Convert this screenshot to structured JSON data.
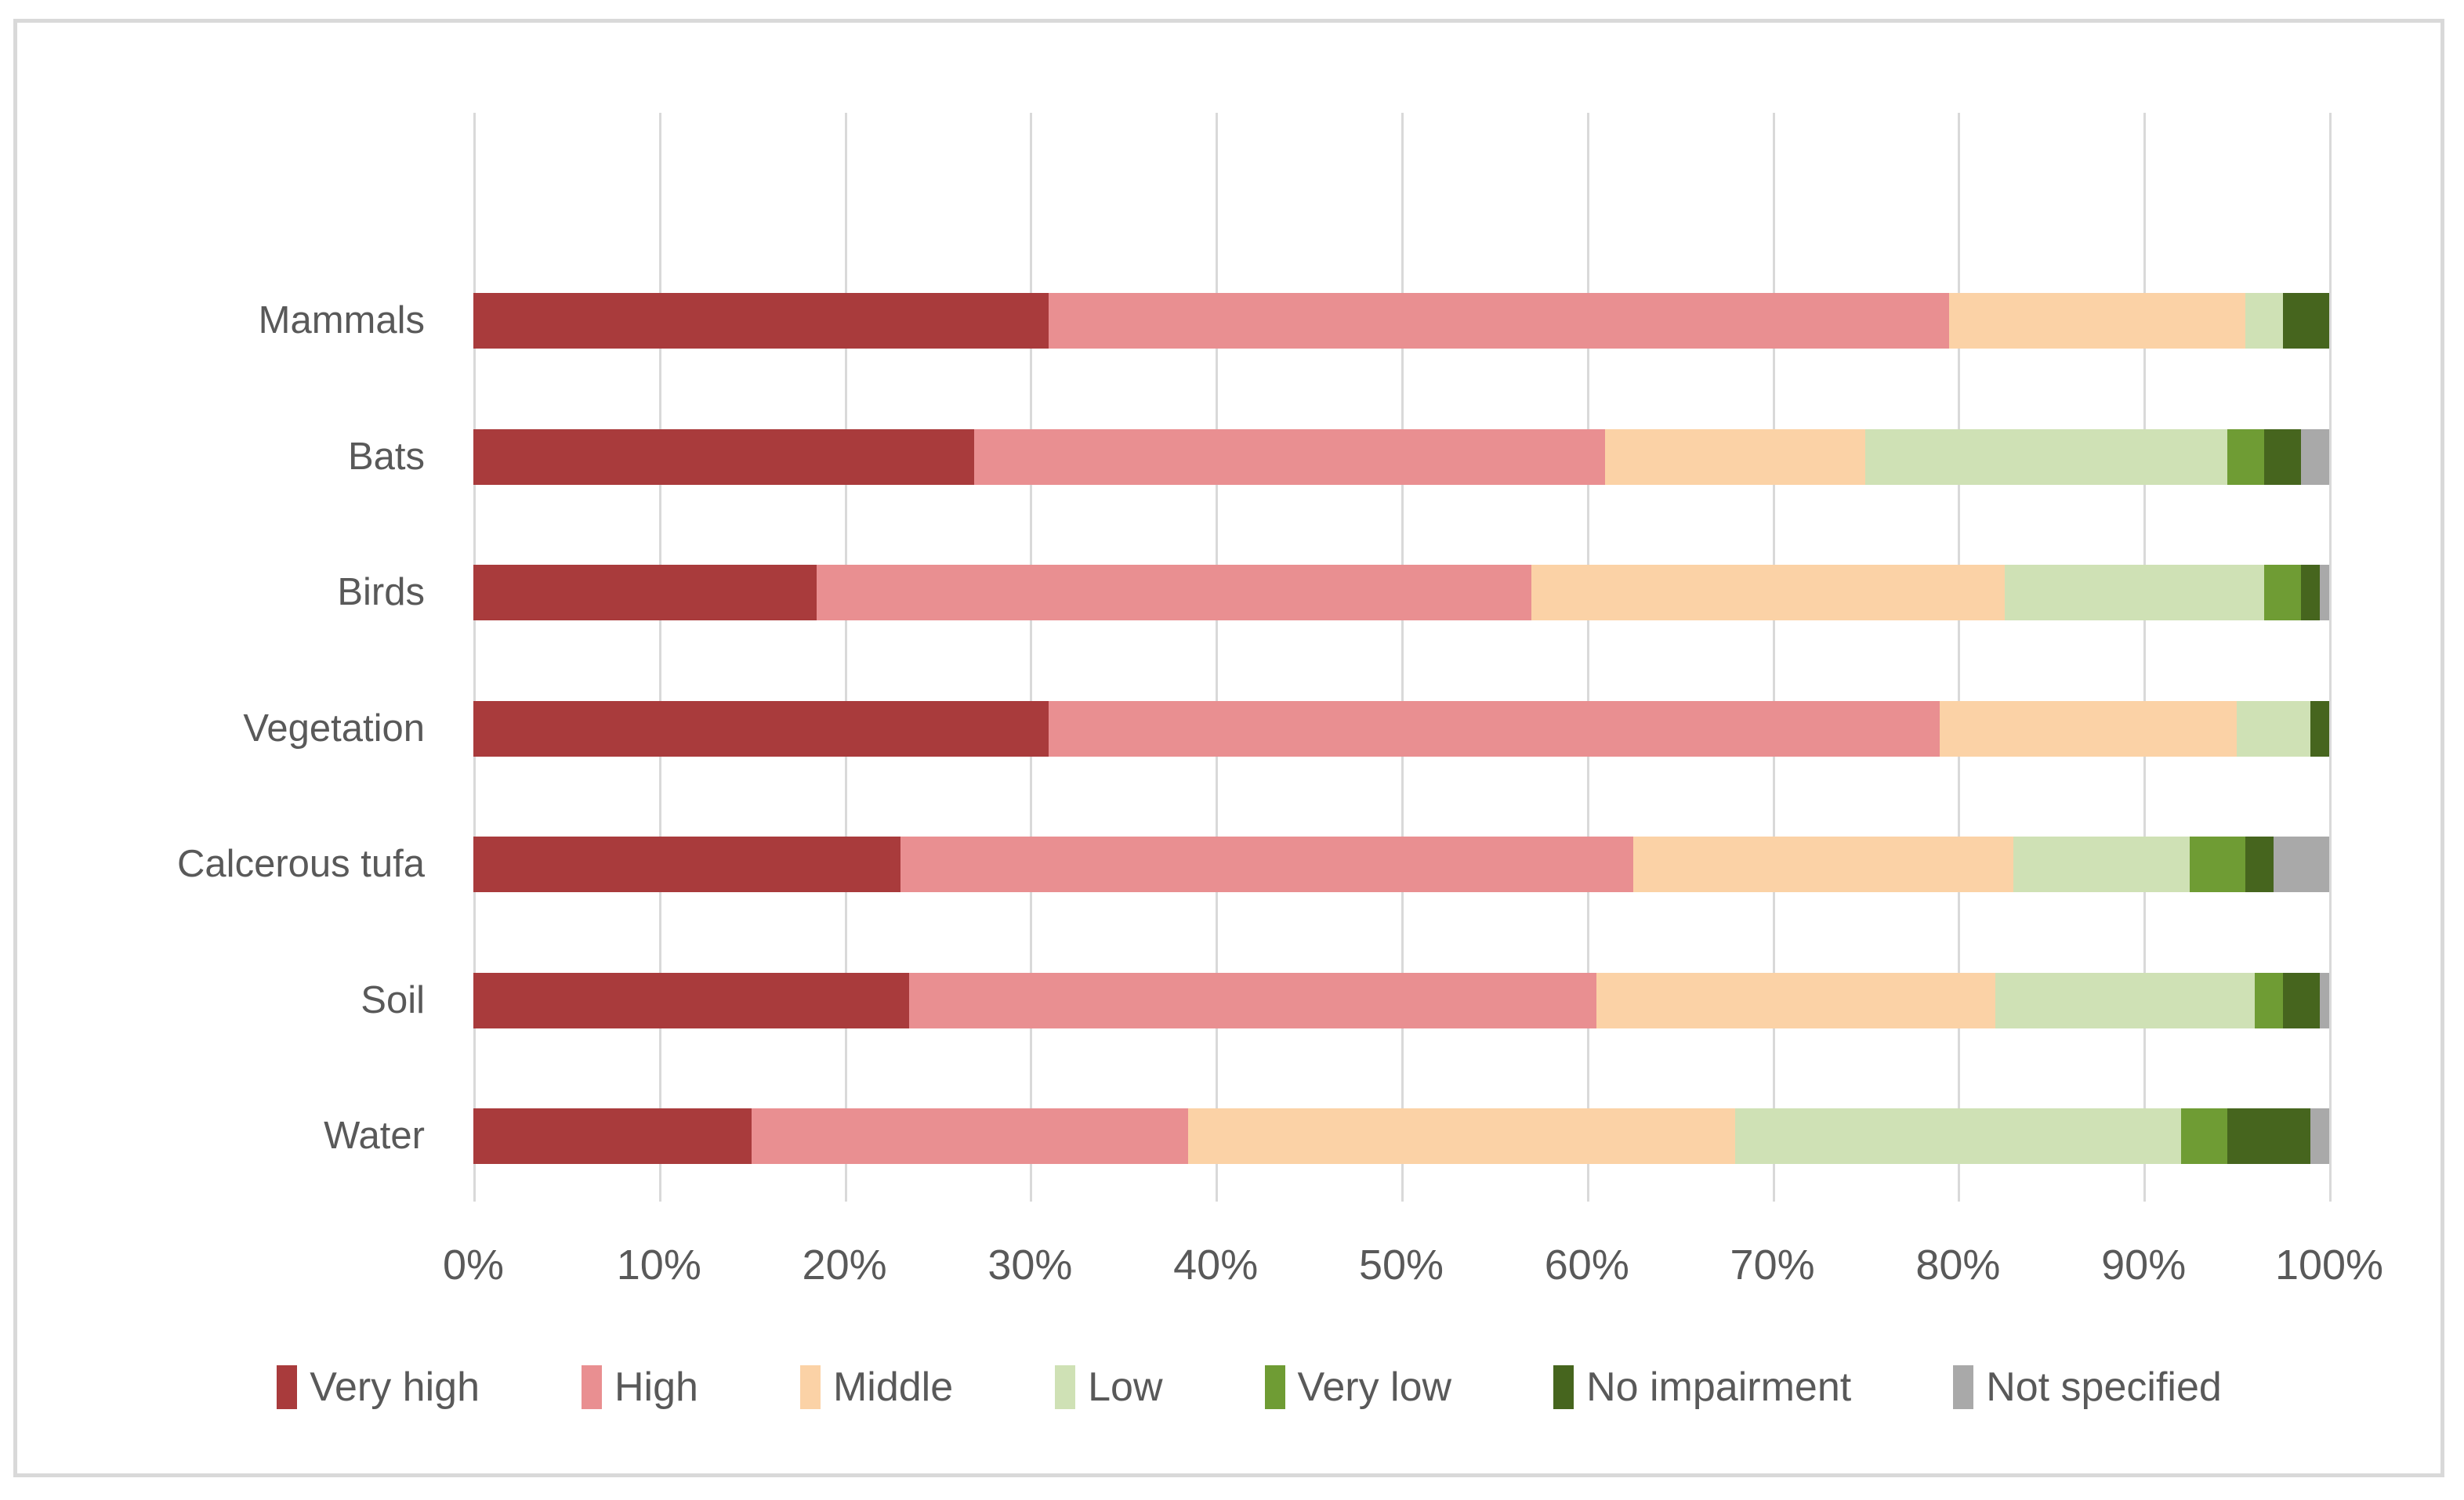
{
  "chart_data": {
    "type": "bar",
    "variant": "horizontal-stacked",
    "unit": "%",
    "title": "",
    "xlabel": "",
    "ylabel": "",
    "grid": true,
    "legend_position": "bottom",
    "x_axis": {
      "min": 0,
      "max": 100,
      "step": 10,
      "tick_labels": [
        "0%",
        "10%",
        "20%",
        "30%",
        "40%",
        "50%",
        "60%",
        "70%",
        "80%",
        "90%",
        "100%"
      ]
    },
    "categories": [
      "Mammals",
      "Bats",
      "Birds",
      "Vegetation",
      "Calcerous tufa",
      "Soil",
      "Water"
    ],
    "series": [
      {
        "name": "Very high",
        "color": "#A93B3C",
        "values": [
          31,
          27,
          18.5,
          31,
          23,
          23.5,
          15
        ]
      },
      {
        "name": "High",
        "color": "#E98F91",
        "values": [
          48.5,
          34,
          38.5,
          48,
          39.5,
          37,
          23.5
        ]
      },
      {
        "name": "Middle",
        "color": "#FBD2A6",
        "values": [
          16,
          14,
          25.5,
          16,
          20.5,
          21.5,
          29.5
        ]
      },
      {
        "name": "Low",
        "color": "#CFE1B5",
        "values": [
          2,
          19.5,
          14,
          4,
          9.5,
          14,
          24
        ]
      },
      {
        "name": "Very low",
        "color": "#6F9C34",
        "values": [
          0,
          2,
          2,
          0,
          3,
          1.5,
          2.5
        ]
      },
      {
        "name": "No impairment",
        "color": "#46651E",
        "values": [
          2.5,
          2,
          1,
          1,
          1.5,
          2,
          4.5
        ]
      },
      {
        "name": "Not specified",
        "color": "#A9A9A9",
        "values": [
          0,
          1.5,
          0.5,
          0,
          3,
          0.5,
          1
        ]
      }
    ]
  },
  "style_colors": {
    "gridline": "#D9D9D9",
    "frame_border": "#D9D9D9",
    "axis_text": "#595959",
    "background": "#FFFFFF"
  }
}
